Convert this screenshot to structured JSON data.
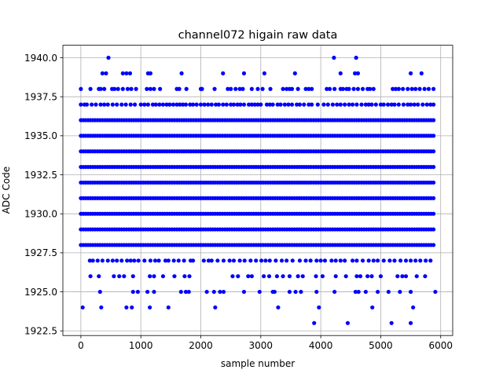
{
  "chart_data": {
    "type": "scatter",
    "title": "channel072 higain raw data",
    "xlabel": "sample number",
    "ylabel": "ADC Code",
    "xlim": [
      -300,
      6200
    ],
    "ylim": [
      1922.2,
      1940.8
    ],
    "xticks": [
      0,
      1000,
      2000,
      3000,
      4000,
      5000,
      6000
    ],
    "yticks": [
      1922.5,
      1925.0,
      1927.5,
      1930.0,
      1932.5,
      1935.0,
      1937.5,
      1940.0
    ],
    "grid": true,
    "marker_color": "#0000ff",
    "sample_range": [
      0,
      5900
    ],
    "level_density": [
      {
        "level": 1928,
        "density": "dense"
      },
      {
        "level": 1929,
        "density": "dense"
      },
      {
        "level": 1930,
        "density": "dense"
      },
      {
        "level": 1931,
        "density": "dense"
      },
      {
        "level": 1932,
        "density": "dense"
      },
      {
        "level": 1933,
        "density": "dense"
      },
      {
        "level": 1934,
        "density": "dense"
      },
      {
        "level": 1935,
        "density": "dense"
      },
      {
        "level": 1936,
        "density": "dense"
      }
    ],
    "sparse_points": [
      {
        "y": 1937,
        "x": [
          0,
          60,
          100,
          180,
          250,
          330,
          390,
          450,
          530,
          600,
          680,
          750,
          830,
          900,
          1000,
          1060,
          1120,
          1200,
          1250,
          1310,
          1370,
          1430,
          1480,
          1540,
          1600,
          1650,
          1700,
          1750,
          1820,
          1870,
          1930,
          2000,
          2060,
          2120,
          2180,
          2250,
          2300,
          2370,
          2430,
          2500,
          2550,
          2610,
          2660,
          2720,
          2800,
          2850,
          2900,
          2950,
          3000,
          3100,
          3150,
          3200,
          3280,
          3330,
          3400,
          3460,
          3520,
          3600,
          3650,
          3720,
          3800,
          3850,
          3950,
          4050,
          4120,
          4200,
          4270,
          4330,
          4400,
          4470,
          4530,
          4600,
          4680,
          4750,
          4800,
          4850,
          4920,
          5000,
          5050,
          5120,
          5180,
          5230,
          5300,
          5380,
          5450,
          5500,
          5560,
          5620,
          5700,
          5770,
          5830,
          5880
        ]
      },
      {
        "y": 1938,
        "x": [
          0,
          160,
          300,
          330,
          390,
          520,
          560,
          620,
          700,
          780,
          840,
          920,
          1100,
          1160,
          1220,
          1320,
          1600,
          1640,
          1760,
          2000,
          2020,
          2230,
          2450,
          2500,
          2580,
          2650,
          2700,
          2850,
          2950,
          3030,
          3160,
          3370,
          3430,
          3480,
          3520,
          3620,
          3750,
          3800,
          3850,
          4100,
          4150,
          4230,
          4330,
          4370,
          4430,
          4470,
          4550,
          4620,
          4700,
          4780,
          4820,
          4880,
          5200,
          5250,
          5300,
          5370,
          5450,
          5520,
          5580,
          5650,
          5730,
          5800,
          5880
        ]
      },
      {
        "y": 1939,
        "x": [
          360,
          420,
          700,
          760,
          820,
          1120,
          1160,
          1680,
          2370,
          2720,
          3060,
          3570,
          4330,
          4570,
          4620,
          5500,
          5680
        ]
      },
      {
        "y": 1940,
        "x": [
          460,
          4220,
          4590
        ]
      },
      {
        "y": 1927,
        "x": [
          150,
          200,
          280,
          360,
          450,
          530,
          600,
          680,
          770,
          830,
          890,
          960,
          1060,
          1160,
          1240,
          1300,
          1410,
          1460,
          1550,
          1630,
          1720,
          1830,
          1870,
          2050,
          2130,
          2180,
          2280,
          2380,
          2480,
          2550,
          2650,
          2730,
          2830,
          2920,
          3010,
          3080,
          3150,
          3250,
          3350,
          3430,
          3530,
          3650,
          3750,
          3830,
          3930,
          4000,
          4070,
          4180,
          4250,
          4330,
          4400,
          4530,
          4600,
          4700,
          4800,
          4880,
          4950,
          5050,
          5150,
          5230,
          5330,
          5420,
          5500,
          5580,
          5660,
          5750,
          5830
        ]
      },
      {
        "y": 1926,
        "x": [
          160,
          300,
          550,
          640,
          720,
          870,
          1150,
          1220,
          1370,
          1560,
          1730,
          1810,
          2530,
          2620,
          2790,
          2850,
          3050,
          3140,
          3270,
          3370,
          3480,
          3620,
          3700,
          3920,
          4030,
          4250,
          4420,
          4600,
          4660,
          4780,
          4850,
          5000,
          5280,
          5360,
          5420,
          5600,
          5740
        ]
      },
      {
        "y": 1925,
        "x": [
          320,
          870,
          950,
          1110,
          1220,
          1670,
          1750,
          1800,
          2100,
          2220,
          2320,
          2380,
          2720,
          2980,
          3200,
          3230,
          3480,
          3580,
          3670,
          3930,
          4230,
          4580,
          4630,
          4750,
          4950,
          5130,
          5320,
          5500,
          5910
        ]
      },
      {
        "y": 1924,
        "x": [
          30,
          340,
          760,
          850,
          1150,
          1460,
          2240,
          3290,
          3970,
          4860,
          5540
        ]
      },
      {
        "y": 1923,
        "x": [
          3890,
          4450,
          5180,
          5500
        ]
      }
    ]
  }
}
